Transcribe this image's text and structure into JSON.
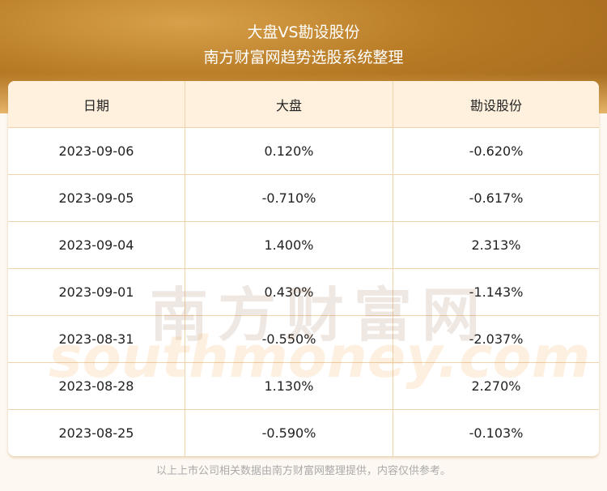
{
  "header": {
    "title": "大盘VS勘设股份",
    "subtitle": "南方财富网趋势选股系统整理"
  },
  "table": {
    "columns": [
      "日期",
      "大盘",
      "勘设股份"
    ],
    "rows": [
      [
        "2023-09-06",
        "0.120%",
        "-0.620%"
      ],
      [
        "2023-09-05",
        "-0.710%",
        "-0.617%"
      ],
      [
        "2023-09-04",
        "1.400%",
        "2.313%"
      ],
      [
        "2023-09-01",
        "0.430%",
        "-1.143%"
      ],
      [
        "2023-08-31",
        "-0.550%",
        "-2.037%"
      ],
      [
        "2023-08-28",
        "1.130%",
        "2.270%"
      ],
      [
        "2023-08-25",
        "-0.590%",
        "-0.103%"
      ]
    ]
  },
  "watermark": {
    "cn": "南方财富网",
    "en": "southmoney.com"
  },
  "footer": "以上上市公司相关数据由南方财富网整理提供，内容仅供参考。"
}
